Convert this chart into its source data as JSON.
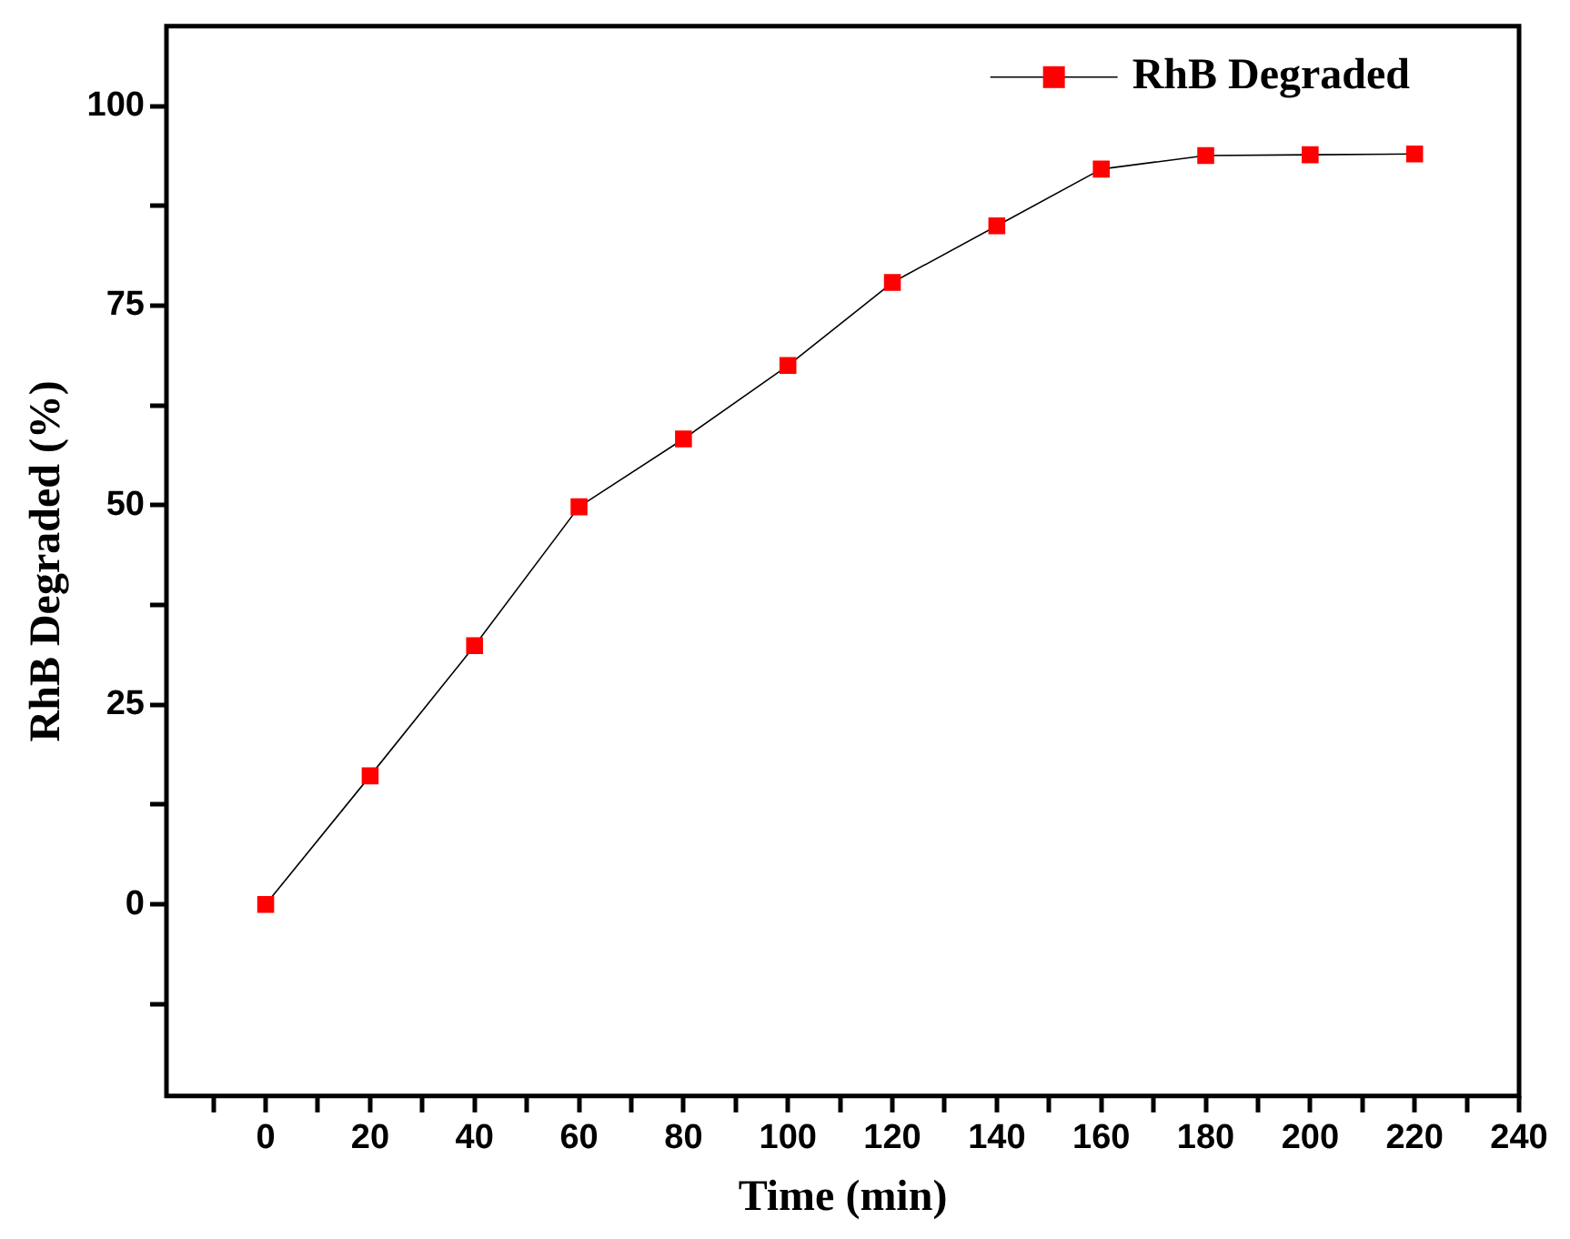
{
  "chart_data": {
    "type": "line",
    "xlabel": "Time (min)",
    "ylabel": "RhB Degraded (%)",
    "x": [
      0,
      20,
      40,
      60,
      80,
      100,
      120,
      140,
      160,
      180,
      200,
      220
    ],
    "series": [
      {
        "name": "RhB Degraded",
        "color": "#ff0000",
        "values": [
          0,
          16.1,
          32.4,
          49.8,
          58.3,
          67.5,
          77.9,
          85.0,
          92.1,
          93.8,
          93.9,
          94.0
        ]
      }
    ],
    "xlim": [
      -19,
      240
    ],
    "xticks": [
      {
        "value": -10,
        "label": null
      },
      0,
      {
        "value": 10,
        "label": null
      },
      20,
      {
        "value": 30,
        "label": null
      },
      40,
      {
        "value": 50,
        "label": null
      },
      60,
      {
        "value": 70,
        "label": null
      },
      80,
      {
        "value": 90,
        "label": null
      },
      100,
      {
        "value": 110,
        "label": null
      },
      120,
      {
        "value": 130,
        "label": null
      },
      140,
      {
        "value": 150,
        "label": null
      },
      160,
      {
        "value": 170,
        "label": null
      },
      180,
      {
        "value": 190,
        "label": null
      },
      200,
      {
        "value": 210,
        "label": null
      },
      220,
      {
        "value": 230,
        "label": null
      },
      240
    ],
    "ylim": [
      -24,
      110
    ],
    "yticks": [
      {
        "value": -12.5,
        "label": null
      },
      0,
      {
        "value": 12.5,
        "label": null
      },
      25,
      {
        "value": 37.5,
        "label": null
      },
      50,
      {
        "value": 62.5,
        "label": null
      },
      75,
      {
        "value": 87.5,
        "label": null
      },
      100
    ],
    "grid": false,
    "legend": "top right",
    "marker": "square",
    "line_style": "solid"
  }
}
